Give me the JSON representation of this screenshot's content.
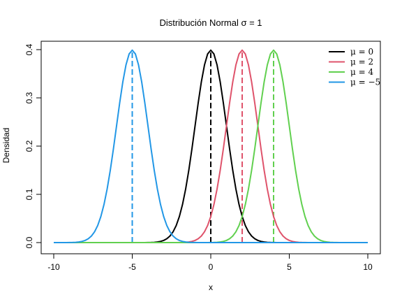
{
  "chart_data": {
    "type": "line",
    "title": "Distribución Normal σ = 1",
    "xlabel": "x",
    "ylabel": "Densidad",
    "xlim": [
      -10,
      10
    ],
    "ylim": [
      0,
      0.4
    ],
    "x_ticks": [
      "-10",
      "-5",
      "0",
      "5",
      "10"
    ],
    "y_ticks": [
      "0.0",
      "0.1",
      "0.2",
      "0.3",
      "0.4"
    ],
    "sigma": 1,
    "grid": false,
    "legend_position": "top-right",
    "series": [
      {
        "name": "μ = 0",
        "mu": 0,
        "color": "#000000"
      },
      {
        "name": "μ = 2",
        "mu": 2,
        "color": "#DF536B"
      },
      {
        "name": "μ = 4",
        "mu": 4,
        "color": "#61D04F"
      },
      {
        "name": "μ = −5",
        "mu": -5,
        "color": "#2297E6"
      }
    ],
    "reference_lines": [
      {
        "x": 0,
        "y_top": 0.3989,
        "color": "#000000",
        "style": "dashed"
      },
      {
        "x": 2,
        "y_top": 0.3989,
        "color": "#DF536B",
        "style": "dashed"
      },
      {
        "x": 4,
        "y_top": 0.3989,
        "color": "#61D04F",
        "style": "dashed"
      },
      {
        "x": -5,
        "y_top": 0.3989,
        "color": "#2297E6",
        "style": "dashed"
      }
    ]
  }
}
